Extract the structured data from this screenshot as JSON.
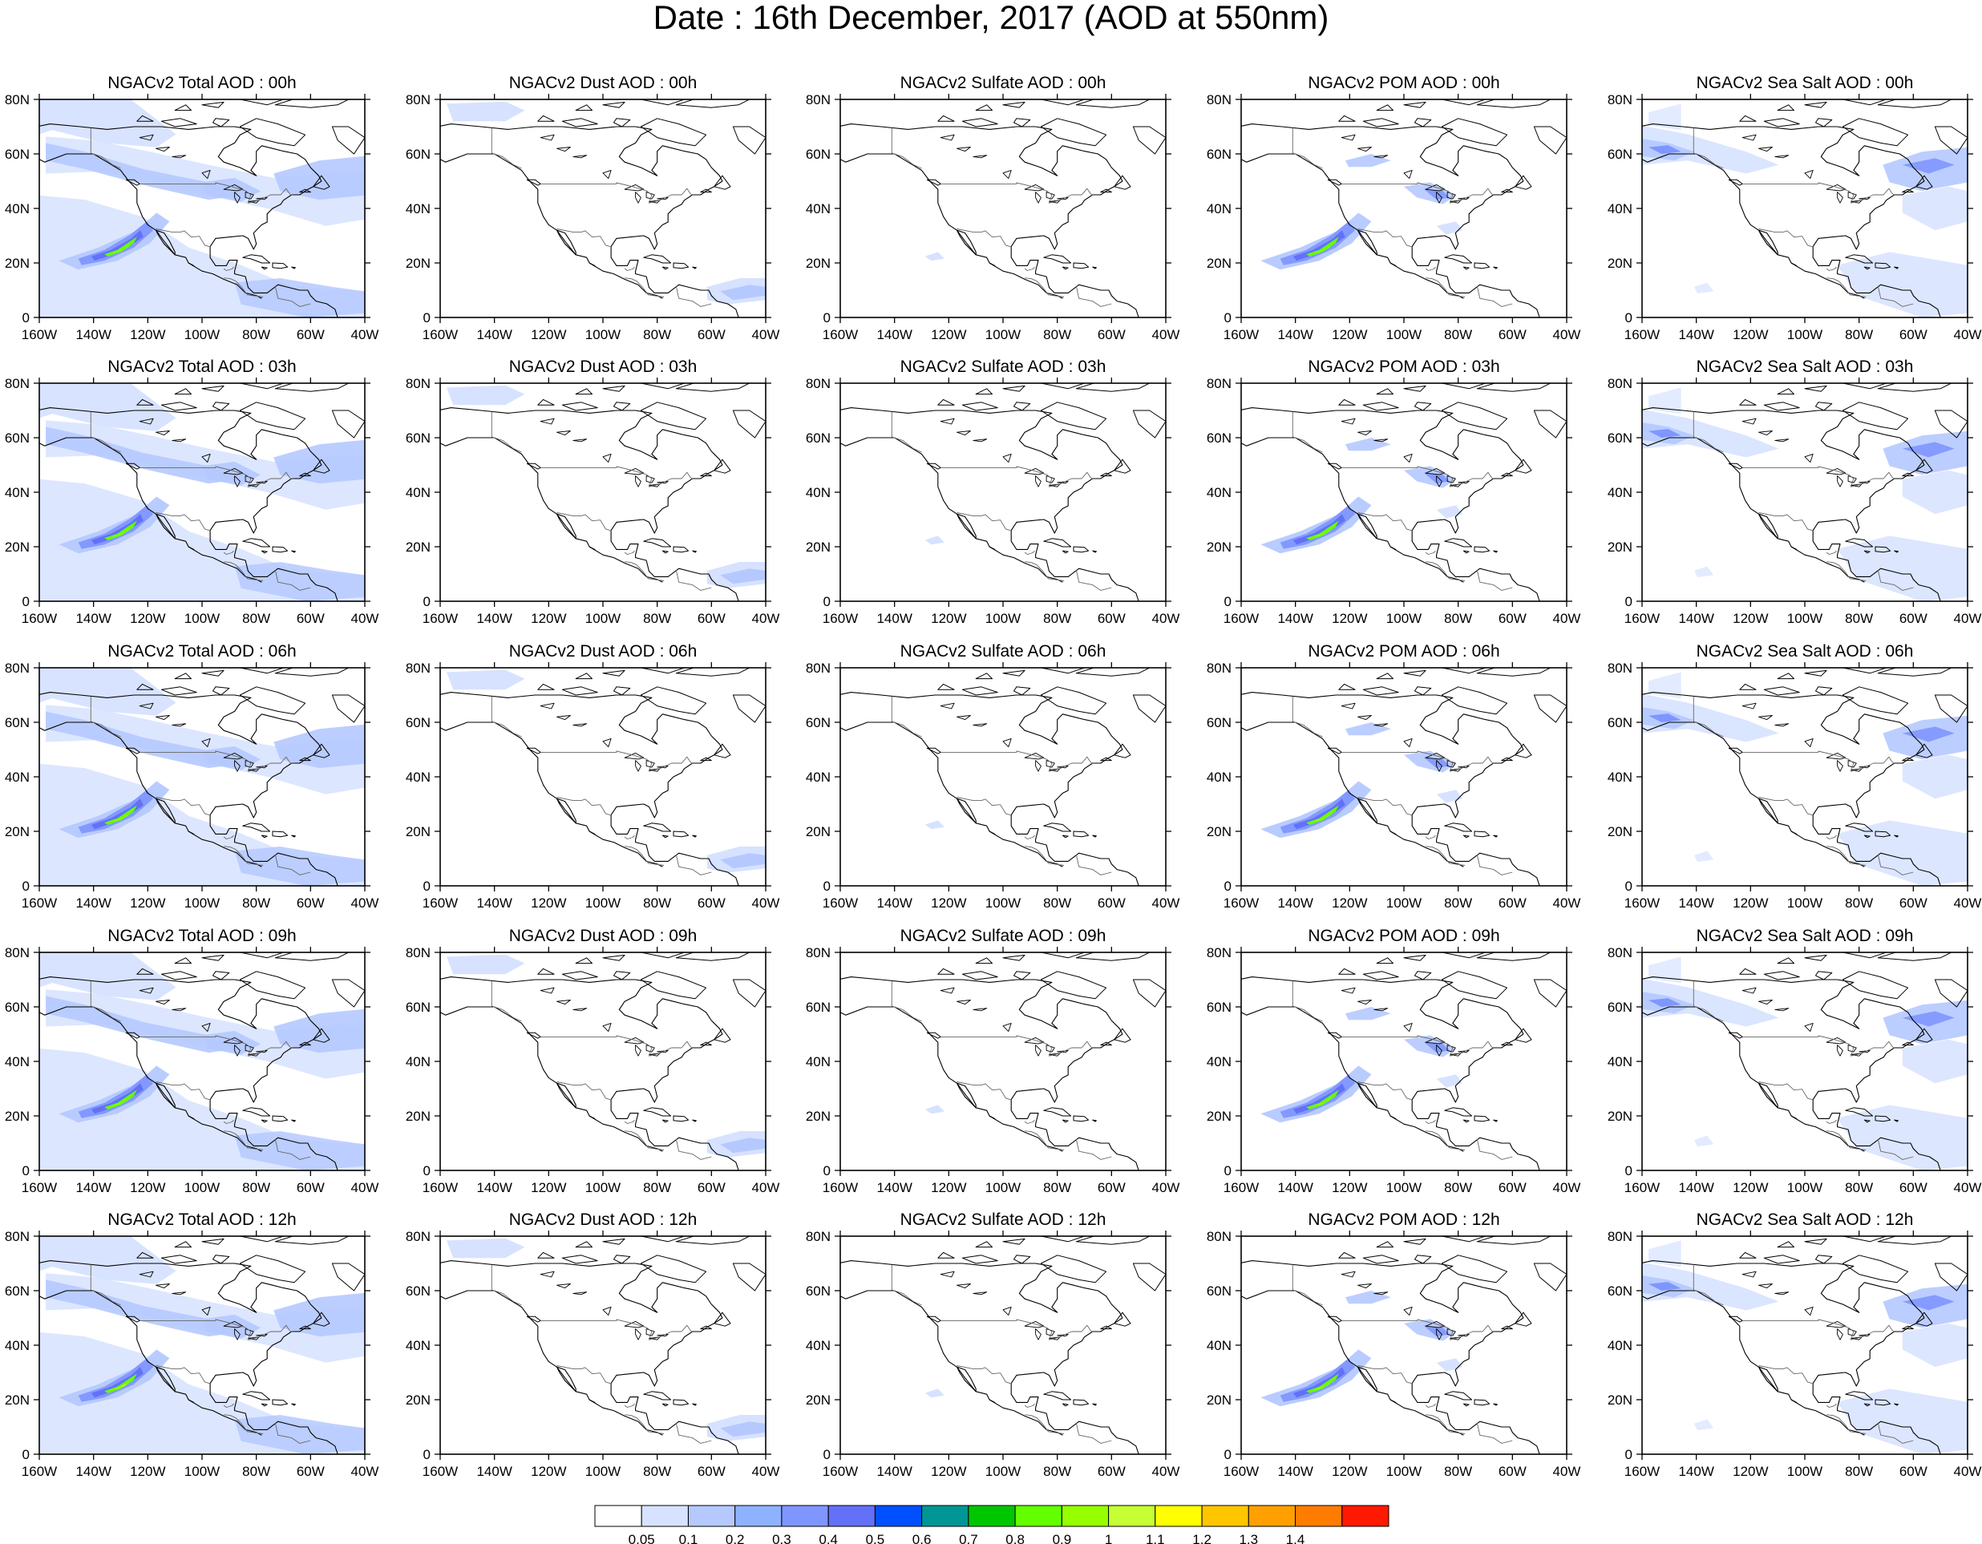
{
  "title": "Date : 16th December, 2017 (AOD at 550nm)",
  "columns": [
    {
      "kind": "total"
    },
    {
      "kind": "dust"
    },
    {
      "kind": "sulfate"
    },
    {
      "kind": "pom"
    },
    {
      "kind": "seasalt"
    }
  ],
  "panel_titles": [
    [
      "NGACv2 Total AOD : 00h",
      "NGACv2 Dust AOD : 00h",
      "NGACv2 Sulfate AOD : 00h",
      "NGACv2 POM AOD : 00h",
      "NGACv2 Sea Salt AOD : 00h"
    ],
    [
      "NGACv2 Total AOD : 03h",
      "NGACv2 Dust AOD : 03h",
      "NGACv2 Sulfate AOD : 03h",
      "NGACv2 POM AOD : 03h",
      "NGACv2 Sea Salt AOD : 03h"
    ],
    [
      "NGACv2 Total AOD : 06h",
      "NGACv2 Dust AOD : 06h",
      "NGACv2 Sulfate AOD : 06h",
      "NGACv2 POM AOD : 06h",
      "NGACv2 Sea Salt AOD : 06h"
    ],
    [
      "NGACv2 Total AOD : 09h",
      "NGACv2 Dust AOD : 09h",
      "NGACv2 Sulfate AOD : 09h",
      "NGACv2 POM AOD : 09h",
      "NGACv2 Sea Salt  AOD : 09h"
    ],
    [
      "NGACv2 Total AOD  : 12h",
      "NGACv2 Dust AOD : 12h",
      "NGACv2 Sulfate AOD : 12h",
      "NGACv2 POM  AOD : 12h",
      "NGACv2 Sea Salt  AOD : 12h"
    ]
  ],
  "x_ticks": [
    "160W",
    "140W",
    "120W",
    "100W",
    "80W",
    "60W",
    "40W"
  ],
  "x_tick_values": [
    -160,
    -140,
    -120,
    -100,
    -80,
    -60,
    -40
  ],
  "y_ticks": [
    "0",
    "20N",
    "40N",
    "60N",
    "80N"
  ],
  "y_tick_values": [
    0,
    20,
    40,
    60,
    80
  ],
  "lon_range": [
    -160,
    -40
  ],
  "lat_range": [
    0,
    80
  ],
  "colorbar": {
    "labels": [
      "0.05",
      "0.1",
      "0.2",
      "0.3",
      "0.4",
      "0.5",
      "0.6",
      "0.7",
      "0.8",
      "0.9",
      "1",
      "1.1",
      "1.2",
      "1.3",
      "1.4"
    ],
    "colors": [
      "#ffffff",
      "#d6e2ff",
      "#b5c9ff",
      "#8eb2ff",
      "#7f96ff",
      "#6370f8",
      "#0050ff",
      "#009696",
      "#00c600",
      "#63ff00",
      "#96ff00",
      "#c6ff33",
      "#ffff00",
      "#ffc600",
      "#ffa000",
      "#ff7c00",
      "#ff1900"
    ]
  },
  "colors": {
    "coast": "#000000",
    "border": "#666666",
    "frame": "#000000"
  }
}
